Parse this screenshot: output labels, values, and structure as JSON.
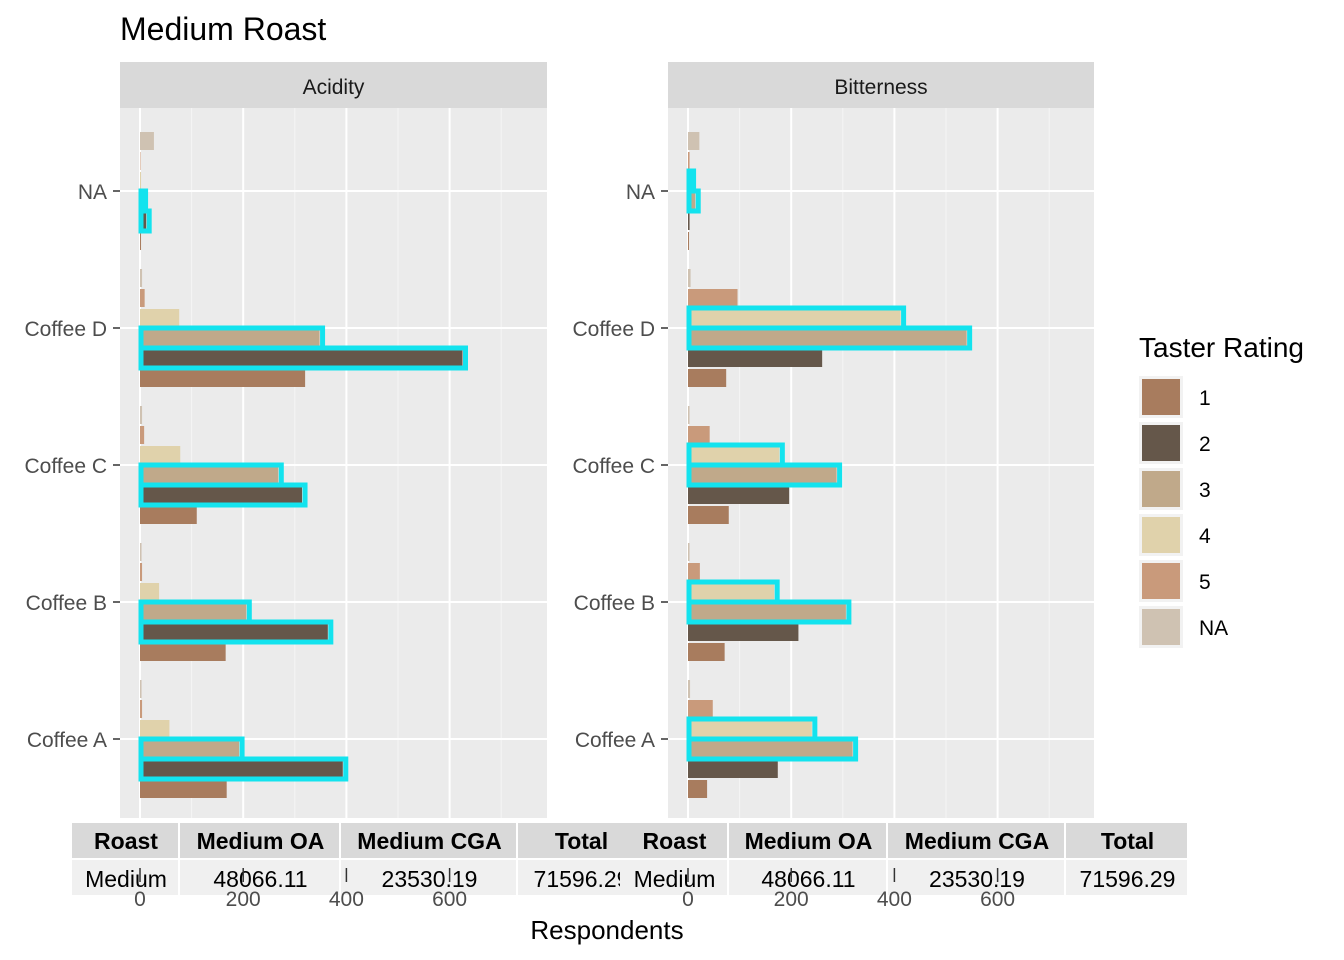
{
  "chart_data": {
    "type": "bar",
    "orientation": "horizontal",
    "title": "Medium Roast",
    "xlabel": "Respondents",
    "ylabel": "",
    "xlim": [
      0,
      800
    ],
    "x_ticks": [
      "0",
      "200",
      "400",
      "600"
    ],
    "x_tick_values": [
      0,
      200,
      400,
      600
    ],
    "categories": [
      "Coffee A",
      "Coffee B",
      "Coffee C",
      "Coffee D",
      "NA"
    ],
    "legend": {
      "title": "Taster Rating",
      "placement": "right",
      "entries": [
        "1",
        "2",
        "3",
        "4",
        "5",
        "NA"
      ],
      "colors": [
        "#A87C5E",
        "#65574A",
        "#C0A98A",
        "#E0D2AB",
        "#C99A7B",
        "#CFC2B2"
      ]
    },
    "highlight_color": "#13E3EE",
    "panels": [
      {
        "name": "Acidity",
        "series": [
          {
            "name": "1",
            "values": [
              168,
              166,
              110,
              320,
              2
            ]
          },
          {
            "name": "2",
            "values": [
              393,
              364,
              314,
              625,
              12
            ]
          },
          {
            "name": "3",
            "values": [
              192,
              206,
              268,
              348,
              5
            ]
          },
          {
            "name": "4",
            "values": [
              57,
              37,
              78,
              76,
              2
            ]
          },
          {
            "name": "5",
            "values": [
              4,
              4,
              8,
              9,
              1
            ]
          },
          {
            "name": "NA",
            "values": [
              3,
              3,
              4,
              4,
              27
            ]
          }
        ],
        "highlighted": {
          "Coffee A": [
            "2",
            "3"
          ],
          "Coffee B": [
            "2",
            "3"
          ],
          "Coffee C": [
            "2",
            "3"
          ],
          "Coffee D": [
            "2",
            "3"
          ],
          "NA": [
            "2",
            "3"
          ]
        }
      },
      {
        "name": "Bitterness",
        "series": [
          {
            "name": "1",
            "values": [
              37,
              71,
              79,
              74,
              2
            ]
          },
          {
            "name": "2",
            "values": [
              174,
              214,
              196,
              260,
              3
            ]
          },
          {
            "name": "3",
            "values": [
              319,
              306,
              288,
              540,
              14
            ]
          },
          {
            "name": "4",
            "values": [
              240,
              167,
              177,
              412,
              5
            ]
          },
          {
            "name": "5",
            "values": [
              48,
              23,
              42,
              96,
              3
            ]
          },
          {
            "name": "NA",
            "values": [
              4,
              3,
              3,
              5,
              22
            ]
          }
        ],
        "highlighted": {
          "Coffee A": [
            "3",
            "4"
          ],
          "Coffee B": [
            "3",
            "4"
          ],
          "Coffee C": [
            "3",
            "4"
          ],
          "Coffee D": [
            "3",
            "4"
          ],
          "NA": [
            "3",
            "4"
          ]
        }
      }
    ]
  },
  "table": {
    "headers": [
      "Roast",
      "Medium OA",
      "Medium CGA",
      "Total"
    ],
    "rows": [
      [
        "Medium",
        "48066.11",
        "23530.19",
        "71596.29"
      ]
    ]
  }
}
